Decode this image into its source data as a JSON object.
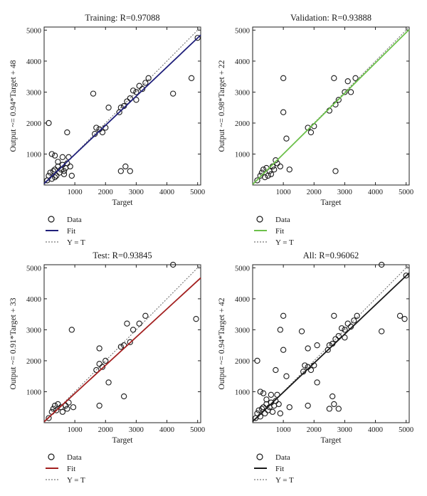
{
  "panels": [
    {
      "id": "training",
      "title": "Training: R=0.97088",
      "ylabel": "Output ~= 0.94*Target + 48",
      "xlabel": "Target",
      "fit_color": "#1f1f7a"
    },
    {
      "id": "validation",
      "title": "Validation: R=0.93888",
      "ylabel": "Output ~= 0.98*Target + 22",
      "xlabel": "Target",
      "fit_color": "#6cc04a"
    },
    {
      "id": "test",
      "title": "Test: R=0.93845",
      "ylabel": "Output ~= 0.91*Target + 33",
      "xlabel": "Target",
      "fit_color": "#a32020"
    },
    {
      "id": "all",
      "title": "All: R=0.96062",
      "ylabel": "Output ~= 0.94*Target + 42",
      "xlabel": "Target",
      "fit_color": "#1a1a1a"
    }
  ],
  "legend": {
    "data": "Data",
    "fit": "Fit",
    "identity": "Y = T"
  },
  "chart_data": [
    {
      "type": "scatter",
      "title": "Training: R=0.97088",
      "xlabel": "Target",
      "ylabel": "Output ~= 0.94*Target + 48",
      "xlim": [
        0,
        5100
      ],
      "ylim": [
        0,
        5100
      ],
      "xticks": [
        1000,
        2000,
        3000,
        4000,
        5000
      ],
      "yticks": [
        1000,
        2000,
        3000,
        4000,
        5000
      ],
      "fit": {
        "slope": 0.94,
        "intercept": 48,
        "color": "#1f1f7a"
      },
      "identity_line": true,
      "series": [
        {
          "name": "Data",
          "points": [
            [
              100,
              150
            ],
            [
              150,
              300
            ],
            [
              200,
              400
            ],
            [
              250,
              200
            ],
            [
              300,
              450
            ],
            [
              350,
              500
            ],
            [
              400,
              300
            ],
            [
              450,
              600
            ],
            [
              500,
              400
            ],
            [
              550,
              500
            ],
            [
              600,
              650
            ],
            [
              650,
              350
            ],
            [
              700,
              550
            ],
            [
              750,
              700
            ],
            [
              800,
              900
            ],
            [
              850,
              600
            ],
            [
              250,
              1000
            ],
            [
              350,
              950
            ],
            [
              450,
              750
            ],
            [
              600,
              900
            ],
            [
              150,
              2000
            ],
            [
              750,
              1700
            ],
            [
              1650,
              1650
            ],
            [
              1700,
              1850
            ],
            [
              1800,
              1800
            ],
            [
              1900,
              1700
            ],
            [
              2000,
              1850
            ],
            [
              2100,
              2500
            ],
            [
              1600,
              2950
            ],
            [
              2450,
              2350
            ],
            [
              2500,
              2500
            ],
            [
              2600,
              2550
            ],
            [
              2700,
              2700
            ],
            [
              2800,
              2800
            ],
            [
              2900,
              3050
            ],
            [
              3000,
              3000
            ],
            [
              3100,
              3200
            ],
            [
              3200,
              3100
            ],
            [
              3300,
              3300
            ],
            [
              3400,
              3450
            ],
            [
              3000,
              2750
            ],
            [
              2500,
              450
            ],
            [
              2650,
              600
            ],
            [
              2800,
              450
            ],
            [
              4200,
              2950
            ],
            [
              4800,
              3450
            ],
            [
              5000,
              4750
            ],
            [
              900,
              300
            ],
            [
              350,
              250
            ],
            [
              650,
              450
            ]
          ]
        }
      ]
    },
    {
      "type": "scatter",
      "title": "Validation: R=0.93888",
      "xlabel": "Target",
      "ylabel": "Output ~= 0.98*Target + 22",
      "xlim": [
        0,
        5100
      ],
      "ylim": [
        0,
        5100
      ],
      "xticks": [
        1000,
        2000,
        3000,
        4000,
        5000
      ],
      "yticks": [
        1000,
        2000,
        3000,
        4000,
        5000
      ],
      "fit": {
        "slope": 0.98,
        "intercept": 22,
        "color": "#6cc04a"
      },
      "identity_line": true,
      "series": [
        {
          "name": "Data",
          "points": [
            [
              150,
              150
            ],
            [
              250,
              300
            ],
            [
              300,
              400
            ],
            [
              350,
              500
            ],
            [
              450,
              550
            ],
            [
              550,
              450
            ],
            [
              650,
              600
            ],
            [
              700,
              500
            ],
            [
              800,
              700
            ],
            [
              400,
              250
            ],
            [
              900,
              600
            ],
            [
              1000,
              3450
            ],
            [
              1000,
              2350
            ],
            [
              1100,
              1500
            ],
            [
              1200,
              500
            ],
            [
              1800,
              1850
            ],
            [
              1900,
              1700
            ],
            [
              2000,
              1900
            ],
            [
              2500,
              2400
            ],
            [
              2650,
              3450
            ],
            [
              2700,
              2600
            ],
            [
              2800,
              2750
            ],
            [
              3000,
              3000
            ],
            [
              3100,
              3350
            ],
            [
              3200,
              3000
            ],
            [
              3350,
              3450
            ],
            [
              2700,
              450
            ],
            [
              600,
              350
            ],
            [
              750,
              800
            ],
            [
              500,
              300
            ]
          ]
        }
      ]
    },
    {
      "type": "scatter",
      "title": "Test: R=0.93845",
      "xlabel": "Target",
      "ylabel": "Output ~= 0.91*Target + 33",
      "xlim": [
        0,
        5100
      ],
      "ylim": [
        0,
        5100
      ],
      "xticks": [
        1000,
        2000,
        3000,
        4000,
        5000
      ],
      "yticks": [
        1000,
        2000,
        3000,
        4000,
        5000
      ],
      "fit": {
        "slope": 0.91,
        "intercept": 33,
        "color": "#a32020"
      },
      "identity_line": true,
      "series": [
        {
          "name": "Data",
          "points": [
            [
              150,
              150
            ],
            [
              250,
              350
            ],
            [
              300,
              450
            ],
            [
              350,
              550
            ],
            [
              400,
              400
            ],
            [
              450,
              600
            ],
            [
              550,
              500
            ],
            [
              600,
              350
            ],
            [
              700,
              550
            ],
            [
              750,
              450
            ],
            [
              800,
              650
            ],
            [
              900,
              3000
            ],
            [
              950,
              500
            ],
            [
              1700,
              1700
            ],
            [
              1800,
              2400
            ],
            [
              1800,
              1900
            ],
            [
              1900,
              1800
            ],
            [
              2000,
              2000
            ],
            [
              2100,
              1300
            ],
            [
              1800,
              550
            ],
            [
              2500,
              2450
            ],
            [
              2600,
              2500
            ],
            [
              2700,
              3200
            ],
            [
              2800,
              2600
            ],
            [
              2900,
              3000
            ],
            [
              3100,
              3200
            ],
            [
              3300,
              3450
            ],
            [
              2600,
              850
            ],
            [
              4200,
              5100
            ],
            [
              4950,
              3350
            ]
          ]
        }
      ]
    },
    {
      "type": "scatter",
      "title": "All: R=0.96062",
      "xlabel": "Target",
      "ylabel": "Output ~= 0.94*Target + 42",
      "xlim": [
        0,
        5100
      ],
      "ylim": [
        0,
        5100
      ],
      "xticks": [
        1000,
        2000,
        3000,
        4000,
        5000
      ],
      "yticks": [
        1000,
        2000,
        3000,
        4000,
        5000
      ],
      "fit": {
        "slope": 0.94,
        "intercept": 42,
        "color": "#1a1a1a"
      },
      "identity_line": true,
      "series": [
        {
          "name": "Data",
          "points": [
            [
              100,
              150
            ],
            [
              150,
              300
            ],
            [
              200,
              400
            ],
            [
              250,
              200
            ],
            [
              300,
              450
            ],
            [
              350,
              500
            ],
            [
              400,
              300
            ],
            [
              450,
              600
            ],
            [
              500,
              400
            ],
            [
              550,
              500
            ],
            [
              600,
              650
            ],
            [
              650,
              350
            ],
            [
              700,
              550
            ],
            [
              750,
              700
            ],
            [
              800,
              900
            ],
            [
              850,
              600
            ],
            [
              250,
              1000
            ],
            [
              350,
              950
            ],
            [
              450,
              750
            ],
            [
              600,
              900
            ],
            [
              150,
              2000
            ],
            [
              750,
              1700
            ],
            [
              900,
              3000
            ],
            [
              1000,
              3450
            ],
            [
              1000,
              2350
            ],
            [
              1100,
              1500
            ],
            [
              1200,
              500
            ],
            [
              1600,
              2950
            ],
            [
              1650,
              1650
            ],
            [
              1700,
              1850
            ],
            [
              1800,
              1800
            ],
            [
              1800,
              2400
            ],
            [
              1900,
              1700
            ],
            [
              2000,
              1850
            ],
            [
              2100,
              2500
            ],
            [
              2100,
              1300
            ],
            [
              1800,
              550
            ],
            [
              2450,
              2350
            ],
            [
              2500,
              2500
            ],
            [
              2600,
              2550
            ],
            [
              2650,
              3450
            ],
            [
              2700,
              2700
            ],
            [
              2800,
              2800
            ],
            [
              2900,
              3050
            ],
            [
              3000,
              3000
            ],
            [
              3100,
              3200
            ],
            [
              3200,
              3100
            ],
            [
              3300,
              3300
            ],
            [
              3400,
              3450
            ],
            [
              3000,
              2750
            ],
            [
              2500,
              450
            ],
            [
              2600,
              850
            ],
            [
              2650,
              600
            ],
            [
              2800,
              450
            ],
            [
              4200,
              5100
            ],
            [
              4200,
              2950
            ],
            [
              4800,
              3450
            ],
            [
              4950,
              3350
            ],
            [
              5000,
              4750
            ],
            [
              900,
              300
            ]
          ]
        }
      ]
    }
  ]
}
